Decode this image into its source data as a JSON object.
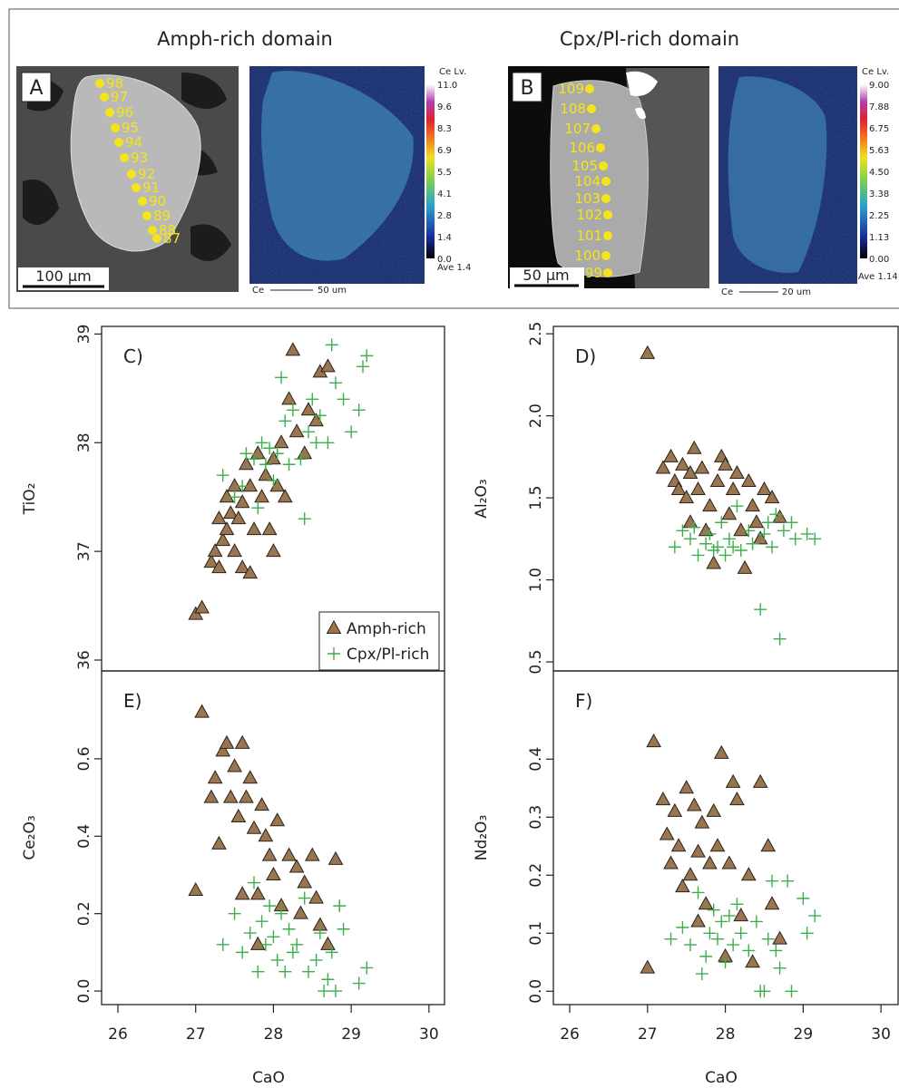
{
  "figure": {
    "panel_a": {
      "title": "Amph-rich domain",
      "label": "A",
      "points": [
        "98",
        "97",
        "96",
        "95",
        "94",
        "93",
        "92",
        "91",
        "90",
        "89",
        "88",
        "87"
      ],
      "scale": "100 µm",
      "map": {
        "colorbar_title": "Ce Lv.",
        "colorbar_labels": [
          "11.0",
          "9.6",
          "8.3",
          "6.9",
          "5.5",
          "4.1",
          "2.8",
          "1.4",
          "0.0"
        ],
        "average": "Ave 1.4",
        "element": "Ce",
        "scale": "50 um"
      }
    },
    "panel_b": {
      "title": "Cpx/Pl-rich domain",
      "label": "B",
      "points": [
        "109",
        "108",
        "107",
        "106",
        "105",
        "104",
        "103",
        "102",
        "101",
        "100",
        "99"
      ],
      "scale": "50 µm",
      "map": {
        "colorbar_title": "Ce Lv.",
        "colorbar_labels": [
          "9.00",
          "7.88",
          "6.75",
          "5.63",
          "4.50",
          "3.38",
          "2.25",
          "1.13",
          "0.00"
        ],
        "average": "Ave 1.14",
        "element": "Ce",
        "scale": "20 um"
      }
    }
  },
  "chart_data": [
    {
      "type": "scatter",
      "label": "C)",
      "ylabel": "TiO₂",
      "xlim": [
        25.79,
        30.2
      ],
      "ylim": [
        35.9,
        39.07
      ],
      "yticks": [
        36,
        37,
        38,
        39
      ],
      "legend": "bottom-right",
      "series": [
        {
          "name": "Amph-rich",
          "marker": "triangle",
          "color": "#9a7650",
          "x": [
            27.0,
            27.08,
            27.2,
            27.25,
            27.3,
            27.3,
            27.35,
            27.4,
            27.4,
            27.45,
            27.5,
            27.5,
            27.55,
            27.6,
            27.6,
            27.65,
            27.7,
            27.7,
            27.75,
            27.8,
            27.85,
            27.9,
            27.95,
            28.0,
            28.0,
            28.05,
            28.1,
            28.15,
            28.2,
            28.25,
            28.3,
            28.4,
            28.45,
            28.55,
            28.6,
            28.7
          ],
          "y": [
            36.42,
            36.48,
            36.9,
            37.0,
            37.3,
            36.85,
            37.1,
            37.5,
            37.2,
            37.35,
            37.6,
            37.0,
            37.3,
            36.85,
            37.45,
            37.8,
            36.8,
            37.6,
            37.2,
            37.9,
            37.5,
            37.7,
            37.2,
            37.85,
            37.0,
            37.6,
            38.0,
            37.5,
            38.4,
            38.85,
            38.1,
            37.9,
            38.3,
            38.2,
            38.65,
            38.7
          ]
        },
        {
          "name": "Cpx/Pl-rich",
          "marker": "plus",
          "color": "#3cae4c",
          "x": [
            27.35,
            27.5,
            27.6,
            27.65,
            27.75,
            27.8,
            27.85,
            27.9,
            27.95,
            28.0,
            28.05,
            28.1,
            28.15,
            28.2,
            28.25,
            28.35,
            28.4,
            28.45,
            28.5,
            28.55,
            28.6,
            28.7,
            28.75,
            28.8,
            28.9,
            29.0,
            29.1,
            29.15,
            29.2
          ],
          "y": [
            37.7,
            37.5,
            37.6,
            37.9,
            37.85,
            37.4,
            38.0,
            37.8,
            37.95,
            37.65,
            37.9,
            38.6,
            38.2,
            37.8,
            38.3,
            37.85,
            37.3,
            38.1,
            38.4,
            38.0,
            38.25,
            38.0,
            38.9,
            38.55,
            38.4,
            38.1,
            38.3,
            38.7,
            38.8
          ]
        }
      ]
    },
    {
      "type": "scatter",
      "label": "D)",
      "ylabel": "Al₂O₃",
      "xlim": [
        25.79,
        30.22
      ],
      "ylim": [
        0.445,
        2.545
      ],
      "yticks": [
        0.5,
        {
          "value": 1,
          "label": "1.0"
        },
        1.5,
        {
          "value": 2,
          "label": "2.0"
        },
        2.5
      ],
      "series": [
        {
          "marker": "triangle",
          "color": "#9a7650",
          "x": [
            27.0,
            27.2,
            27.3,
            27.35,
            27.4,
            27.45,
            27.5,
            27.55,
            27.6,
            27.65,
            27.7,
            27.75,
            27.8,
            27.85,
            27.9,
            27.95,
            28.0,
            28.05,
            28.1,
            28.15,
            28.2,
            28.25,
            28.3,
            28.35,
            28.4,
            28.5,
            28.6,
            28.7,
            28.45,
            27.55
          ],
          "y": [
            2.38,
            1.68,
            1.75,
            1.6,
            1.55,
            1.7,
            1.5,
            1.65,
            1.8,
            1.55,
            1.68,
            1.3,
            1.45,
            1.1,
            1.6,
            1.75,
            1.7,
            1.4,
            1.55,
            1.65,
            1.3,
            1.07,
            1.6,
            1.45,
            1.35,
            1.55,
            1.5,
            1.38,
            1.25,
            1.35
          ]
        },
        {
          "marker": "plus",
          "color": "#3cae4c",
          "x": [
            27.35,
            27.45,
            27.55,
            27.65,
            27.75,
            27.8,
            27.85,
            27.9,
            27.95,
            28.0,
            28.05,
            28.1,
            28.15,
            28.2,
            28.3,
            28.35,
            28.45,
            28.5,
            28.55,
            28.6,
            28.7,
            28.75,
            28.85,
            28.9,
            29.05,
            29.15,
            28.65,
            27.6
          ],
          "y": [
            1.2,
            1.3,
            1.25,
            1.15,
            1.22,
            1.28,
            1.18,
            1.2,
            1.35,
            1.15,
            1.25,
            1.2,
            1.45,
            1.18,
            1.3,
            1.22,
            0.82,
            1.28,
            1.35,
            1.2,
            0.64,
            1.3,
            1.35,
            1.25,
            1.28,
            1.25,
            1.4,
            1.32
          ]
        }
      ]
    },
    {
      "type": "scatter",
      "label": "E)",
      "ylabel": "Ce₂O₃",
      "xlabel": "CaO",
      "xlim": [
        25.79,
        30.2
      ],
      "ylim": [
        -0.035,
        0.827
      ],
      "xticks": [
        26,
        27,
        28,
        29,
        30
      ],
      "yticks": [
        {
          "value": 0,
          "label": "0.0"
        },
        0.2,
        0.4,
        0.6
      ],
      "series": [
        {
          "marker": "triangle",
          "color": "#9a7650",
          "x": [
            27.0,
            27.08,
            27.2,
            27.25,
            27.3,
            27.35,
            27.4,
            27.45,
            27.5,
            27.55,
            27.6,
            27.65,
            27.7,
            27.75,
            27.8,
            27.8,
            27.85,
            27.9,
            27.95,
            28.0,
            28.05,
            28.1,
            28.2,
            28.3,
            28.4,
            28.5,
            28.55,
            28.6,
            28.7,
            28.8,
            27.6,
            28.35
          ],
          "y": [
            0.26,
            0.72,
            0.5,
            0.55,
            0.38,
            0.62,
            0.64,
            0.5,
            0.58,
            0.45,
            0.64,
            0.5,
            0.55,
            0.42,
            0.25,
            0.12,
            0.48,
            0.4,
            0.35,
            0.3,
            0.44,
            0.22,
            0.35,
            0.32,
            0.28,
            0.35,
            0.24,
            0.17,
            0.12,
            0.34,
            0.25,
            0.2
          ]
        },
        {
          "marker": "plus",
          "color": "#3cae4c",
          "x": [
            27.35,
            27.5,
            27.6,
            27.7,
            27.8,
            27.85,
            27.9,
            27.95,
            28.0,
            28.05,
            28.1,
            28.15,
            28.2,
            28.25,
            28.3,
            28.4,
            28.45,
            28.55,
            28.6,
            28.65,
            28.7,
            28.75,
            28.8,
            28.85,
            28.9,
            29.1,
            29.2,
            27.75
          ],
          "y": [
            0.12,
            0.2,
            0.1,
            0.15,
            0.05,
            0.18,
            0.12,
            0.22,
            0.14,
            0.08,
            0.2,
            0.05,
            0.16,
            0.1,
            0.12,
            0.24,
            0.05,
            0.08,
            0.15,
            0.0,
            0.03,
            0.1,
            0.0,
            0.22,
            0.16,
            0.02,
            0.06,
            0.28
          ]
        }
      ]
    },
    {
      "type": "scatter",
      "label": "F)",
      "ylabel": "Nd₂O₃",
      "xlabel": "CaO",
      "xlim": [
        25.79,
        30.22
      ],
      "ylim": [
        -0.023,
        0.552
      ],
      "xticks": [
        26,
        27,
        28,
        29,
        30
      ],
      "yticks": [
        {
          "value": 0,
          "label": "0.0"
        },
        0.1,
        0.2,
        0.3,
        0.4
      ],
      "series": [
        {
          "marker": "triangle",
          "color": "#9a7650",
          "x": [
            27.0,
            27.08,
            27.2,
            27.25,
            27.3,
            27.35,
            27.4,
            27.45,
            27.5,
            27.55,
            27.6,
            27.65,
            27.7,
            27.75,
            27.8,
            27.85,
            27.9,
            27.95,
            28.0,
            28.05,
            28.1,
            28.15,
            28.2,
            28.3,
            28.35,
            28.45,
            28.55,
            28.6,
            28.7,
            27.65
          ],
          "y": [
            0.04,
            0.43,
            0.33,
            0.27,
            0.22,
            0.31,
            0.25,
            0.18,
            0.35,
            0.2,
            0.32,
            0.24,
            0.29,
            0.15,
            0.22,
            0.31,
            0.25,
            0.41,
            0.06,
            0.22,
            0.36,
            0.33,
            0.13,
            0.2,
            0.05,
            0.36,
            0.25,
            0.15,
            0.09,
            0.12
          ]
        },
        {
          "marker": "plus",
          "color": "#3cae4c",
          "x": [
            27.3,
            27.45,
            27.55,
            27.65,
            27.75,
            27.8,
            27.85,
            27.9,
            27.95,
            28.0,
            28.05,
            28.1,
            28.15,
            28.2,
            28.3,
            28.4,
            28.45,
            28.5,
            28.55,
            28.6,
            28.65,
            28.7,
            28.8,
            28.85,
            29.0,
            29.05,
            29.15,
            27.7
          ],
          "y": [
            0.09,
            0.11,
            0.08,
            0.17,
            0.06,
            0.1,
            0.14,
            0.09,
            0.12,
            0.05,
            0.13,
            0.08,
            0.15,
            0.1,
            0.07,
            0.12,
            0.0,
            0.0,
            0.09,
            0.19,
            0.07,
            0.04,
            0.19,
            0.0,
            0.16,
            0.1,
            0.13,
            0.03
          ]
        }
      ]
    }
  ]
}
